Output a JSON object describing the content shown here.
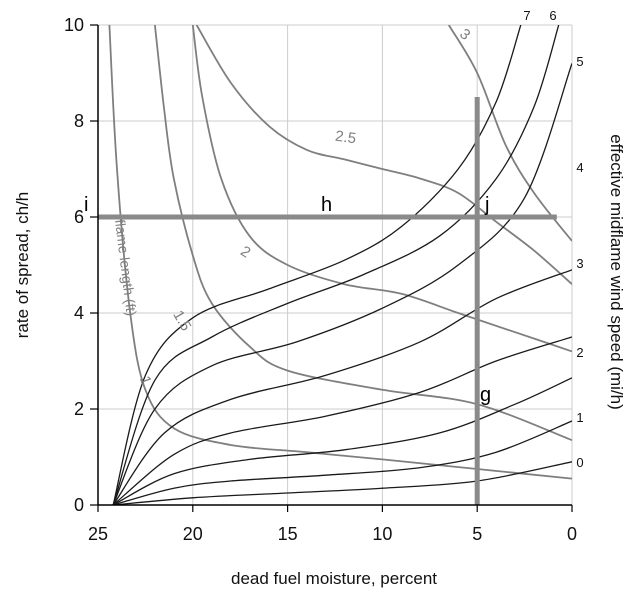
{
  "chart_data": {
    "type": "line",
    "xlabel": "dead fuel moisture, percent",
    "ylabel": "rate of spread, ch/h",
    "y2label": "effective midflame wind speed (mi/h)",
    "xlim": [
      25,
      0
    ],
    "ylim": [
      0,
      10
    ],
    "x_ticks": [
      25,
      20,
      15,
      10,
      5,
      0
    ],
    "y_ticks": [
      0,
      2,
      4,
      6,
      8,
      10
    ],
    "grid": true,
    "colors": {
      "wind": "#1a1a1a",
      "flame": "#7f7f7f",
      "guide": "#8a8a8a",
      "grid": "#cccccc"
    },
    "wind_series": [
      {
        "name": "0",
        "points": [
          [
            24.2,
            0
          ],
          [
            20,
            0.15
          ],
          [
            15,
            0.25
          ],
          [
            10,
            0.35
          ],
          [
            5,
            0.5
          ],
          [
            0,
            0.9
          ]
        ]
      },
      {
        "name": "1",
        "points": [
          [
            24.2,
            0
          ],
          [
            21,
            0.35
          ],
          [
            18,
            0.5
          ],
          [
            13,
            0.62
          ],
          [
            8,
            0.78
          ],
          [
            4,
            1.1
          ],
          [
            0,
            1.75
          ]
        ]
      },
      {
        "name": "2",
        "points": [
          [
            24.2,
            0
          ],
          [
            21,
            0.65
          ],
          [
            17,
            0.95
          ],
          [
            12,
            1.15
          ],
          [
            7,
            1.5
          ],
          [
            3,
            2.1
          ],
          [
            0,
            2.65
          ]
        ]
      },
      {
        "name": "3",
        "points": [
          [
            24.2,
            0
          ],
          [
            21,
            1.05
          ],
          [
            18,
            1.5
          ],
          [
            13,
            1.85
          ],
          [
            8,
            2.35
          ],
          [
            4,
            3.0
          ],
          [
            0,
            3.5
          ]
        ]
      },
      {
        "name": "4",
        "points": [
          [
            24.2,
            0
          ],
          [
            21.5,
            1.5
          ],
          [
            18,
            2.2
          ],
          [
            13,
            2.7
          ],
          [
            8,
            3.4
          ],
          [
            4,
            4.3
          ],
          [
            0,
            4.9
          ]
        ]
      },
      {
        "name": "5",
        "points": [
          [
            24.2,
            0
          ],
          [
            22,
            2.0
          ],
          [
            19,
            2.9
          ],
          [
            14.5,
            3.4
          ],
          [
            10,
            4.1
          ],
          [
            6,
            5.0
          ],
          [
            2.5,
            6.4
          ],
          [
            0,
            9.2
          ]
        ]
      },
      {
        "name": "6",
        "points": [
          [
            24.2,
            0
          ],
          [
            22,
            2.6
          ],
          [
            19,
            3.5
          ],
          [
            15,
            4.2
          ],
          [
            11,
            4.8
          ],
          [
            7,
            5.6
          ],
          [
            4,
            6.8
          ],
          [
            2,
            8.3
          ],
          [
            0.7,
            10
          ]
        ]
      },
      {
        "name": "7",
        "points": [
          [
            24.2,
            0
          ],
          [
            22.5,
            2.7
          ],
          [
            20,
            3.9
          ],
          [
            16,
            4.5
          ],
          [
            12,
            5.1
          ],
          [
            9,
            5.8
          ],
          [
            6,
            7.0
          ],
          [
            4,
            8.4
          ],
          [
            2.7,
            10
          ]
        ]
      }
    ],
    "flame_series": [
      {
        "name": "1",
        "points": [
          [
            24.4,
            10
          ],
          [
            24.0,
            7.0
          ],
          [
            23.3,
            4.0
          ],
          [
            22.5,
            2.4
          ],
          [
            21,
            1.6
          ],
          [
            18,
            1.25
          ],
          [
            14,
            1.1
          ],
          [
            10,
            0.95
          ],
          [
            5,
            0.75
          ],
          [
            0,
            0.55
          ]
        ]
      },
      {
        "name": "1.5",
        "points": [
          [
            22.0,
            10
          ],
          [
            21.5,
            8.2
          ],
          [
            21,
            6.8
          ],
          [
            20,
            5.2
          ],
          [
            19,
            4.2
          ],
          [
            17,
            3.3
          ],
          [
            15,
            2.8
          ],
          [
            10,
            2.4
          ],
          [
            5,
            2.1
          ],
          [
            0,
            1.35
          ]
        ]
      },
      {
        "name": "2",
        "points": [
          [
            20.0,
            10
          ],
          [
            19.5,
            8.5
          ],
          [
            18.5,
            6.8
          ],
          [
            17,
            5.6
          ],
          [
            15,
            5.0
          ],
          [
            12,
            4.6
          ],
          [
            9,
            4.4
          ],
          [
            6,
            4.0
          ],
          [
            3,
            3.6
          ],
          [
            0,
            3.2
          ]
        ]
      },
      {
        "name": "2.5",
        "points": [
          [
            19.8,
            10
          ],
          [
            18,
            8.8
          ],
          [
            16,
            7.9
          ],
          [
            14,
            7.4
          ],
          [
            12,
            7.2
          ],
          [
            10,
            7.0
          ],
          [
            8,
            6.8
          ],
          [
            6,
            6.5
          ],
          [
            4,
            5.9
          ],
          [
            2,
            5.3
          ],
          [
            0,
            4.6
          ]
        ]
      },
      {
        "name": "3",
        "points": [
          [
            6.5,
            10
          ],
          [
            5,
            9.0
          ],
          [
            3.5,
            7.5
          ],
          [
            2,
            6.5
          ],
          [
            0,
            5.5
          ]
        ]
      }
    ],
    "guide_lines": [
      {
        "from": [
          25,
          6.0
        ],
        "to": [
          0.8,
          6.0
        ]
      },
      {
        "from": [
          5.0,
          0
        ],
        "to": [
          5.0,
          8.5
        ]
      }
    ],
    "annotations": {
      "h": "h",
      "i": "i",
      "j": "j",
      "g": "g",
      "flame_length_label": "flame length (ft)"
    }
  }
}
